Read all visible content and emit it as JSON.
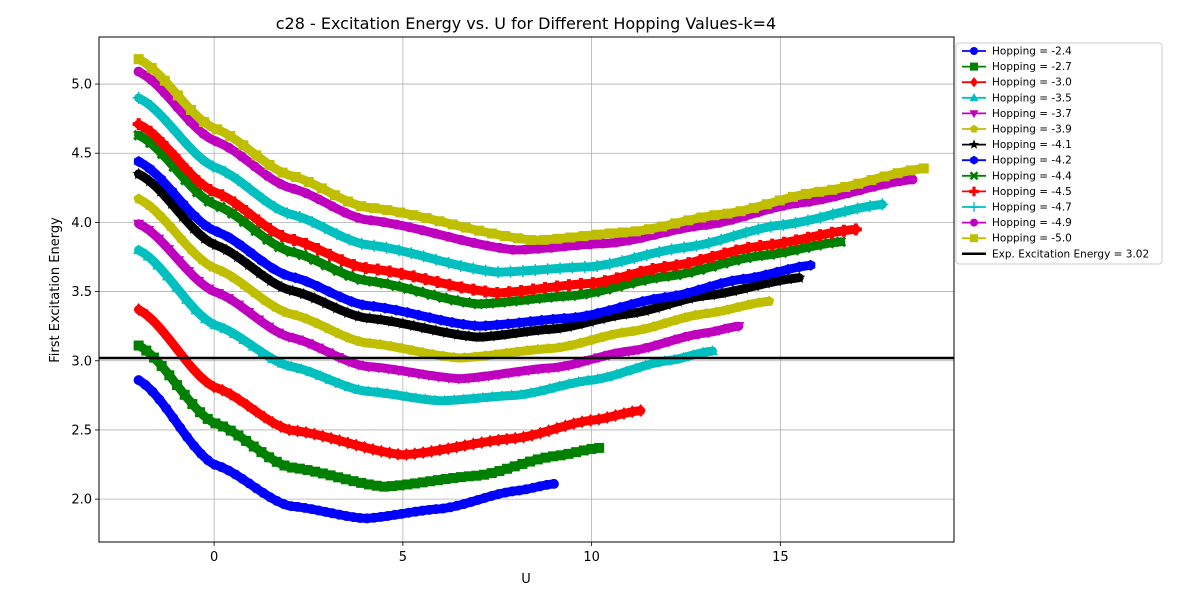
{
  "chart_data": {
    "type": "line",
    "title": "c28 - Excitation Energy vs. U for Different Hopping Values-k=4",
    "xlabel": "U",
    "ylabel": "First Excitation Energy",
    "xlim": [
      -3.05,
      19.6
    ],
    "ylim": [
      1.69,
      5.34
    ],
    "xticks": [
      0,
      5,
      10,
      15
    ],
    "xtick_labels": [
      "0",
      "5",
      "10",
      "15"
    ],
    "yticks": [
      2.0,
      2.5,
      3.0,
      3.5,
      4.0,
      4.5,
      5.0
    ],
    "ytick_labels": [
      "2.0",
      "2.5",
      "3.0",
      "3.5",
      "4.0",
      "4.5",
      "5.0"
    ],
    "grid": true,
    "legend_position": "outside-top-right",
    "reference_line": {
      "name": "Exp. Excitation Energy = 3.02",
      "value": 3.02,
      "color": "#000000"
    },
    "series": [
      {
        "name": "Hopping = -2.4",
        "color": "#0000ff",
        "marker": "circle",
        "x": [
          -2,
          0,
          2,
          4,
          6,
          8,
          9
        ],
        "y": [
          2.86,
          2.25,
          1.95,
          1.86,
          1.93,
          2.06,
          2.11
        ]
      },
      {
        "name": "Hopping = -2.7",
        "color": "#008000",
        "marker": "square",
        "x": [
          -2,
          0,
          2,
          4.5,
          7,
          9,
          10.2
        ],
        "y": [
          3.11,
          2.55,
          2.23,
          2.09,
          2.17,
          2.31,
          2.37
        ]
      },
      {
        "name": "Hopping = -3.0",
        "color": "#ff0000",
        "marker": "diamond",
        "x": [
          -2,
          0,
          2,
          5,
          8,
          10,
          11.3
        ],
        "y": [
          3.37,
          2.81,
          2.5,
          2.32,
          2.44,
          2.57,
          2.64
        ]
      },
      {
        "name": "Hopping = -3.5",
        "color": "#00bfbf",
        "marker": "triangle-up",
        "x": [
          -2,
          0,
          2,
          4,
          6,
          8,
          10,
          12,
          13.2
        ],
        "y": [
          3.8,
          3.26,
          2.96,
          2.78,
          2.71,
          2.75,
          2.86,
          3.0,
          3.07
        ]
      },
      {
        "name": "Hopping = -3.7",
        "color": "#bf00bf",
        "marker": "triangle-down",
        "x": [
          -2,
          0,
          2,
          4,
          6.5,
          9,
          11,
          13,
          13.9
        ],
        "y": [
          3.99,
          3.5,
          3.17,
          2.96,
          2.87,
          2.95,
          3.07,
          3.2,
          3.25
        ]
      },
      {
        "name": "Hopping = -3.9",
        "color": "#bfbf00",
        "marker": "pentagon",
        "x": [
          -2,
          0,
          2,
          4,
          6.5,
          9,
          11,
          13,
          14.7
        ],
        "y": [
          4.17,
          3.67,
          3.34,
          3.13,
          3.02,
          3.09,
          3.21,
          3.34,
          3.43
        ]
      },
      {
        "name": "Hopping = -4.1",
        "color": "#000000",
        "marker": "star",
        "x": [
          -2,
          0,
          2,
          4,
          7,
          9,
          11,
          13,
          15.5
        ],
        "y": [
          4.35,
          3.84,
          3.51,
          3.31,
          3.17,
          3.23,
          3.34,
          3.47,
          3.6
        ]
      },
      {
        "name": "Hopping = -4.2",
        "color": "#0000ff",
        "marker": "hexagon",
        "x": [
          -2,
          0,
          2,
          4,
          7,
          9.5,
          12,
          14,
          15.8
        ],
        "y": [
          4.44,
          3.94,
          3.61,
          3.4,
          3.25,
          3.31,
          3.46,
          3.59,
          3.69
        ]
      },
      {
        "name": "Hopping = -4.4",
        "color": "#008000",
        "marker": "x-filled",
        "x": [
          -2,
          0,
          2,
          4,
          7,
          9.5,
          12,
          14.5,
          16.6
        ],
        "y": [
          4.63,
          4.13,
          3.79,
          3.58,
          3.41,
          3.47,
          3.61,
          3.76,
          3.86
        ]
      },
      {
        "name": "Hopping = -4.5",
        "color": "#ff0000",
        "marker": "plus-filled",
        "x": [
          -2,
          0,
          2,
          4,
          7.5,
          10,
          12,
          14.5,
          17
        ],
        "y": [
          4.71,
          4.22,
          3.88,
          3.67,
          3.49,
          3.56,
          3.68,
          3.83,
          3.95
        ]
      },
      {
        "name": "Hopping = -4.7",
        "color": "#00bfbf",
        "marker": "plus",
        "x": [
          -2,
          0,
          2,
          4,
          7.5,
          10,
          12.5,
          15,
          17.7
        ],
        "y": [
          4.9,
          4.4,
          4.06,
          3.84,
          3.64,
          3.68,
          3.82,
          3.98,
          4.13
        ]
      },
      {
        "name": "Hopping = -4.9",
        "color": "#bf00bf",
        "marker": "circle",
        "x": [
          -2,
          0,
          2,
          4,
          8,
          10.5,
          13,
          15.5,
          18.5
        ],
        "y": [
          5.09,
          4.59,
          4.25,
          4.02,
          3.8,
          3.85,
          3.98,
          4.14,
          4.31
        ]
      },
      {
        "name": "Hopping = -5.0",
        "color": "#bfbf00",
        "marker": "square",
        "x": [
          -2,
          0,
          2,
          4,
          8.5,
          11,
          13.5,
          16,
          18.8
        ],
        "y": [
          5.18,
          4.68,
          4.34,
          4.11,
          3.87,
          3.93,
          4.06,
          4.22,
          4.39
        ]
      }
    ]
  }
}
